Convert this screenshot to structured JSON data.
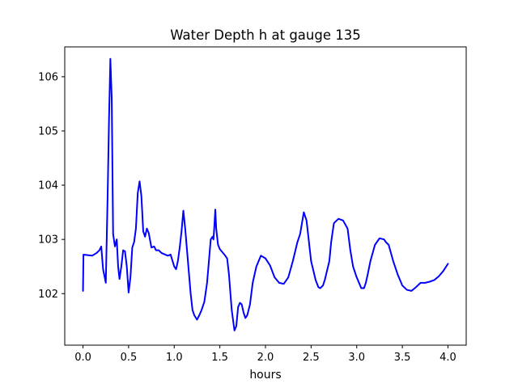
{
  "chart_data": {
    "type": "line",
    "title": "Water Depth h at gauge 135",
    "xlabel": "hours",
    "ylabel": "",
    "xlim": [
      -0.2,
      4.2
    ],
    "ylim": [
      101.05,
      106.55
    ],
    "grid": false,
    "x_ticks": [
      0.0,
      0.5,
      1.0,
      1.5,
      2.0,
      2.5,
      3.0,
      3.5,
      4.0
    ],
    "x_tick_labels": [
      "0.0",
      "0.5",
      "1.0",
      "1.5",
      "2.0",
      "2.5",
      "3.0",
      "3.5",
      "4.0"
    ],
    "y_ticks": [
      102,
      103,
      104,
      105,
      106
    ],
    "y_tick_labels": [
      "102",
      "103",
      "104",
      "105",
      "106"
    ],
    "series": [
      {
        "color": "#0000ff",
        "x": [
          0.0,
          0.005,
          0.05,
          0.1,
          0.15,
          0.18,
          0.2,
          0.22,
          0.25,
          0.27,
          0.285,
          0.3,
          0.315,
          0.33,
          0.35,
          0.37,
          0.385,
          0.4,
          0.42,
          0.44,
          0.46,
          0.48,
          0.5,
          0.52,
          0.54,
          0.56,
          0.58,
          0.6,
          0.62,
          0.64,
          0.66,
          0.68,
          0.7,
          0.72,
          0.75,
          0.78,
          0.8,
          0.83,
          0.86,
          0.9,
          0.93,
          0.96,
          1.0,
          1.02,
          1.04,
          1.06,
          1.08,
          1.1,
          1.12,
          1.15,
          1.18,
          1.2,
          1.22,
          1.25,
          1.28,
          1.3,
          1.33,
          1.36,
          1.38,
          1.4,
          1.42,
          1.43,
          1.44,
          1.45,
          1.46,
          1.48,
          1.5,
          1.55,
          1.58,
          1.6,
          1.63,
          1.66,
          1.68,
          1.7,
          1.72,
          1.74,
          1.76,
          1.78,
          1.8,
          1.83,
          1.86,
          1.9,
          1.95,
          2.0,
          2.05,
          2.1,
          2.15,
          2.2,
          2.25,
          2.3,
          2.35,
          2.38,
          2.4,
          2.42,
          2.45,
          2.5,
          2.55,
          2.58,
          2.6,
          2.63,
          2.65,
          2.7,
          2.72,
          2.75,
          2.8,
          2.85,
          2.9,
          2.93,
          2.96,
          3.0,
          3.05,
          3.08,
          3.1,
          3.12,
          3.15,
          3.2,
          3.25,
          3.3,
          3.32,
          3.35,
          3.4,
          3.45,
          3.5,
          3.55,
          3.6,
          3.65,
          3.7,
          3.75,
          3.8,
          3.85,
          3.9,
          3.95,
          4.0
        ],
        "y": [
          102.05,
          102.72,
          102.71,
          102.7,
          102.75,
          102.8,
          102.87,
          102.45,
          102.2,
          103.8,
          105.2,
          106.33,
          105.6,
          103.1,
          102.87,
          103.0,
          102.5,
          102.27,
          102.5,
          102.8,
          102.78,
          102.5,
          102.02,
          102.3,
          102.85,
          102.95,
          103.2,
          103.85,
          104.07,
          103.8,
          103.15,
          103.05,
          103.2,
          103.12,
          102.85,
          102.87,
          102.8,
          102.8,
          102.75,
          102.72,
          102.7,
          102.72,
          102.5,
          102.45,
          102.6,
          102.85,
          103.15,
          103.53,
          103.2,
          102.6,
          102.0,
          101.7,
          101.6,
          101.52,
          101.62,
          101.7,
          101.85,
          102.2,
          102.6,
          103.0,
          103.05,
          103.0,
          103.25,
          103.55,
          103.2,
          102.9,
          102.82,
          102.72,
          102.65,
          102.35,
          101.7,
          101.32,
          101.4,
          101.75,
          101.83,
          101.8,
          101.65,
          101.55,
          101.6,
          101.8,
          102.2,
          102.5,
          102.7,
          102.65,
          102.52,
          102.3,
          102.2,
          102.18,
          102.3,
          102.6,
          102.95,
          103.1,
          103.3,
          103.5,
          103.35,
          102.6,
          102.25,
          102.12,
          102.1,
          102.15,
          102.25,
          102.6,
          102.95,
          103.3,
          103.38,
          103.35,
          103.2,
          102.8,
          102.5,
          102.3,
          102.1,
          102.1,
          102.2,
          102.35,
          102.6,
          102.9,
          103.02,
          103.0,
          102.95,
          102.9,
          102.6,
          102.35,
          102.15,
          102.07,
          102.05,
          102.12,
          102.2,
          102.2,
          102.22,
          102.25,
          102.32,
          102.42,
          102.55
        ]
      }
    ]
  }
}
